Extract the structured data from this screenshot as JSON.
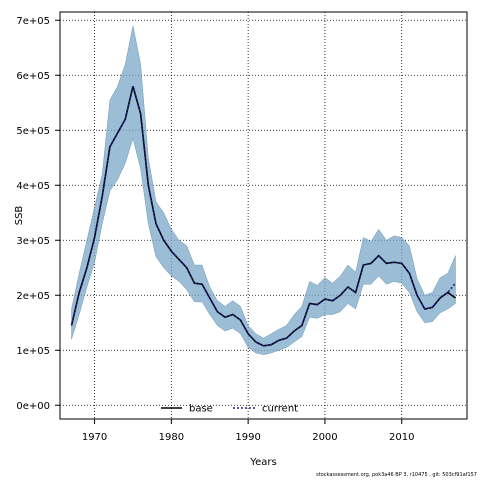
{
  "chart_data": {
    "type": "area",
    "xlabel": "Years",
    "ylabel": "SSB",
    "xlim": [
      1965.5,
      2018.5
    ],
    "ylim": [
      -25000,
      715000
    ],
    "xticks": [
      1970,
      1980,
      1990,
      2000,
      2010
    ],
    "xtick_labels": [
      "1970",
      "1980",
      "1990",
      "2000",
      "2010"
    ],
    "yticks": [
      0,
      100000,
      200000,
      300000,
      400000,
      500000,
      600000,
      700000
    ],
    "ytick_labels": [
      "0e+00",
      "1e+05",
      "2e+05",
      "3e+05",
      "4e+05",
      "5e+05",
      "6e+05",
      "7e+05"
    ],
    "grid": true,
    "legend_position": "bottom-center",
    "colors": {
      "band": "#7aa7c7",
      "band_opacity": 0.75,
      "base": "#000000",
      "current": "#1a237e"
    },
    "x": [
      1967,
      1968,
      1969,
      1970,
      1971,
      1972,
      1973,
      1974,
      1975,
      1976,
      1977,
      1978,
      1979,
      1980,
      1981,
      1982,
      1983,
      1984,
      1985,
      1986,
      1987,
      1988,
      1989,
      1990,
      1991,
      1992,
      1993,
      1994,
      1995,
      1996,
      1997,
      1998,
      1999,
      2000,
      2001,
      2002,
      2003,
      2004,
      2005,
      2006,
      2007,
      2008,
      2009,
      2010,
      2011,
      2012,
      2013,
      2014,
      2015,
      2016,
      2017
    ],
    "series": [
      {
        "name": "base",
        "style": "solid",
        "values": [
          145000,
          205000,
          250000,
          305000,
          380000,
          470000,
          495000,
          520000,
          580000,
          530000,
          400000,
          330000,
          300000,
          280000,
          265000,
          250000,
          222000,
          220000,
          195000,
          170000,
          160000,
          165000,
          155000,
          130000,
          115000,
          108000,
          110000,
          118000,
          122000,
          135000,
          145000,
          185000,
          183000,
          193000,
          190000,
          200000,
          215000,
          205000,
          255000,
          258000,
          272000,
          258000,
          260000,
          258000,
          240000,
          200000,
          175000,
          178000,
          195000,
          205000,
          195000
        ]
      },
      {
        "name": "current",
        "style": "dotted",
        "values": [
          145000,
          205000,
          250000,
          305000,
          380000,
          470000,
          495000,
          520000,
          580000,
          530000,
          400000,
          330000,
          300000,
          280000,
          265000,
          250000,
          222000,
          220000,
          195000,
          170000,
          160000,
          165000,
          155000,
          130000,
          115000,
          108000,
          110000,
          118000,
          122000,
          135000,
          145000,
          185000,
          183000,
          193000,
          190000,
          200000,
          215000,
          205000,
          255000,
          258000,
          272000,
          258000,
          260000,
          258000,
          240000,
          200000,
          175000,
          178000,
          195000,
          205000,
          222000
        ]
      }
    ],
    "band_upper": [
      175000,
      240000,
      300000,
      360000,
      420000,
      555000,
      580000,
      620000,
      690000,
      620000,
      450000,
      370000,
      350000,
      320000,
      300000,
      290000,
      255000,
      255000,
      215000,
      190000,
      180000,
      190000,
      180000,
      145000,
      130000,
      122000,
      130000,
      138000,
      145000,
      165000,
      180000,
      225000,
      218000,
      232000,
      222000,
      235000,
      255000,
      242000,
      305000,
      298000,
      320000,
      300000,
      308000,
      305000,
      290000,
      230000,
      200000,
      205000,
      232000,
      240000,
      272000
    ],
    "band_lower": [
      120000,
      165000,
      215000,
      260000,
      330000,
      390000,
      410000,
      440000,
      485000,
      430000,
      330000,
      270000,
      250000,
      235000,
      225000,
      210000,
      188000,
      188000,
      165000,
      145000,
      135000,
      140000,
      130000,
      105000,
      95000,
      92000,
      95000,
      100000,
      105000,
      115000,
      125000,
      160000,
      158000,
      165000,
      165000,
      170000,
      185000,
      175000,
      220000,
      220000,
      235000,
      220000,
      225000,
      222000,
      205000,
      170000,
      150000,
      152000,
      168000,
      175000,
      185000
    ]
  },
  "legend": {
    "items": [
      "base",
      "current"
    ]
  },
  "footer_text": "stockassessment.org, pok3a46 BP 3, r10475 , git: 503cf91af157"
}
